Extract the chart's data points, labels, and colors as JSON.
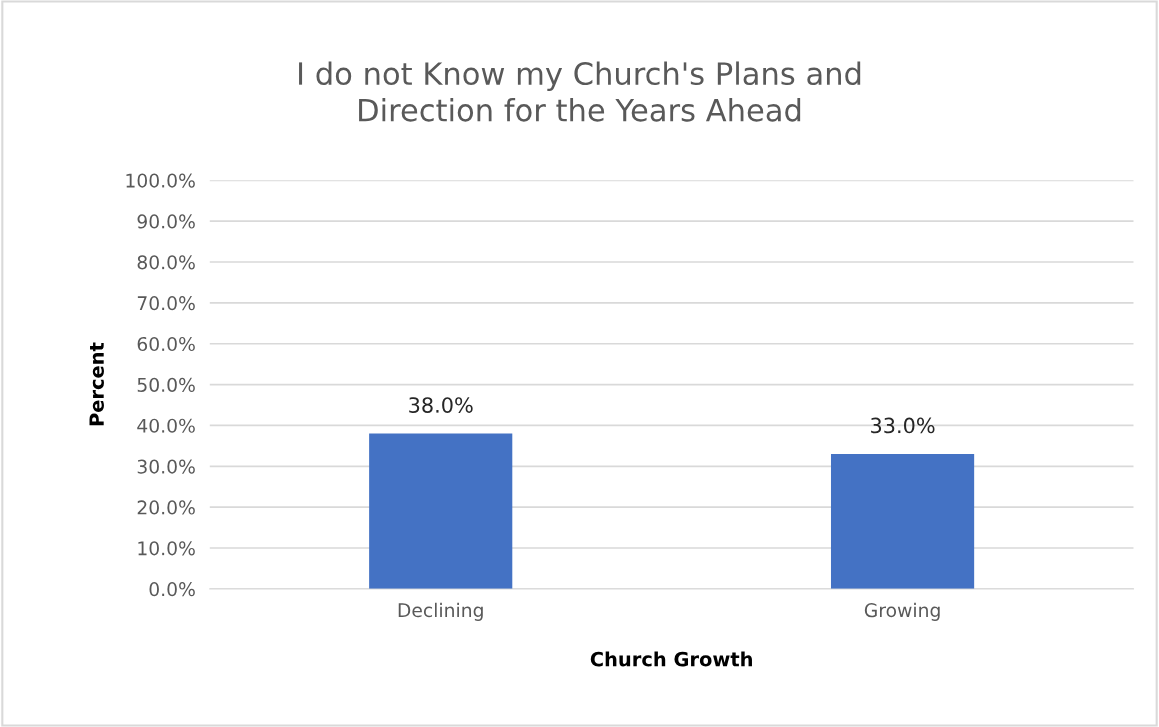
{
  "chart_data": {
    "type": "bar",
    "title": "I do not Know my Church's Plans and\nDirection for the Years Ahead",
    "xlabel": "Church Growth",
    "ylabel": "Percent",
    "categories": [
      "Declining",
      "Growing"
    ],
    "values": [
      38.0,
      33.0
    ],
    "color": "#4472c4",
    "value_labels": [
      "38.0%",
      "33.0%"
    ],
    "ylim": [
      0,
      100
    ],
    "yticks": [
      {
        "value": 0,
        "label": "0.0%"
      },
      {
        "value": 10,
        "label": "10.0%"
      },
      {
        "value": 20,
        "label": "20.0%"
      },
      {
        "value": 30,
        "label": "30.0%"
      },
      {
        "value": 40,
        "label": "40.0%"
      },
      {
        "value": 50,
        "label": "50.0%"
      },
      {
        "value": 60,
        "label": "60.0%"
      },
      {
        "value": 70,
        "label": "70.0%"
      },
      {
        "value": 80,
        "label": "80.0%"
      },
      {
        "value": 90,
        "label": "90.0%"
      },
      {
        "value": 100,
        "label": "100.0%"
      }
    ],
    "grid": "y"
  }
}
